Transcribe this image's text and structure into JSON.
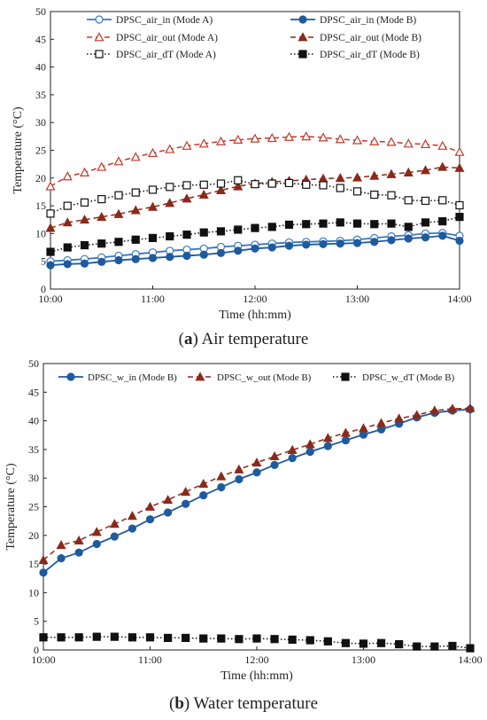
{
  "chart_data": [
    {
      "type": "line",
      "caption_letter": "a",
      "caption_text": " Air temperature",
      "xlabel": "Time (hh:mm)",
      "ylabel": "Temperature (°C)",
      "xlim": [
        0,
        240
      ],
      "ylim": [
        0,
        50
      ],
      "xticks": [
        "10:00",
        "11:00",
        "12:00",
        "13:00",
        "14:00"
      ],
      "yticks": [
        0,
        5,
        10,
        15,
        20,
        25,
        30,
        35,
        40,
        45,
        50
      ],
      "grid": false,
      "legend_position": "top",
      "x": [
        0,
        10,
        20,
        30,
        40,
        50,
        60,
        70,
        80,
        90,
        100,
        110,
        120,
        130,
        140,
        150,
        160,
        170,
        180,
        190,
        200,
        210,
        220,
        230,
        240
      ],
      "series": [
        {
          "name": "DPSC_air_in (Mode A)",
          "color": "#3a78c2",
          "line": "solid",
          "marker": "circle-open",
          "values": [
            5.0,
            5.2,
            5.4,
            5.7,
            6.0,
            6.3,
            6.6,
            6.9,
            7.1,
            7.3,
            7.6,
            7.8,
            8.0,
            8.2,
            8.4,
            8.5,
            8.6,
            8.7,
            8.9,
            9.2,
            9.5,
            9.7,
            10.0,
            10.1,
            9.6
          ]
        },
        {
          "name": "DPSC_air_in (Mode B)",
          "color": "#1f5a9e",
          "line": "solid",
          "marker": "circle-filled",
          "values": [
            4.3,
            4.5,
            4.6,
            4.9,
            5.2,
            5.4,
            5.6,
            5.8,
            6.0,
            6.2,
            6.5,
            6.9,
            7.3,
            7.5,
            7.8,
            8.0,
            8.1,
            8.2,
            8.3,
            8.5,
            8.8,
            9.1,
            9.3,
            9.6,
            8.7
          ]
        },
        {
          "name": "DPSC_air_out (Mode A)",
          "color": "#c0392b",
          "line": "dashed",
          "marker": "triangle-open",
          "values": [
            18.5,
            20.3,
            21.0,
            22.0,
            23.0,
            23.8,
            24.5,
            25.2,
            25.8,
            26.2,
            26.6,
            26.9,
            27.1,
            27.2,
            27.4,
            27.5,
            27.3,
            27.0,
            26.8,
            26.6,
            26.5,
            26.2,
            26.1,
            25.8,
            24.7
          ]
        },
        {
          "name": "DPSC_air_out (Mode B)",
          "color": "#8b2a1a",
          "line": "dashed",
          "marker": "triangle-filled",
          "values": [
            11.0,
            12.0,
            12.5,
            13.0,
            13.5,
            14.2,
            14.8,
            15.5,
            16.3,
            17.0,
            17.8,
            18.5,
            19.0,
            19.3,
            19.5,
            19.7,
            19.9,
            20.0,
            20.1,
            20.4,
            20.7,
            21.0,
            21.4,
            22.0,
            21.8
          ]
        },
        {
          "name": "DPSC_air_dT (Mode A)",
          "color": "#111111",
          "line": "dotted",
          "marker": "square-open",
          "values": [
            13.6,
            15.0,
            15.6,
            16.2,
            16.9,
            17.4,
            17.9,
            18.4,
            18.7,
            18.8,
            19.0,
            19.6,
            18.9,
            19.0,
            19.1,
            18.8,
            18.7,
            18.2,
            17.6,
            17.0,
            16.9,
            16.0,
            15.9,
            16.0,
            15.1
          ]
        },
        {
          "name": "DPSC_air_dT (Mode B)",
          "color": "#111111",
          "line": "dotted",
          "marker": "square-filled",
          "values": [
            6.7,
            7.5,
            7.9,
            8.2,
            8.5,
            8.9,
            9.2,
            9.5,
            9.8,
            10.2,
            10.4,
            10.7,
            11.0,
            11.2,
            11.6,
            11.7,
            11.8,
            12.0,
            11.8,
            11.7,
            11.8,
            11.2,
            12.0,
            12.2,
            13.0
          ]
        }
      ]
    },
    {
      "type": "line",
      "caption_letter": "b",
      "caption_text": " Water temperature",
      "xlabel": "Time (hh:mm)",
      "ylabel": "Temperature (°C)",
      "xlim": [
        0,
        240
      ],
      "ylim": [
        0,
        50
      ],
      "xticks": [
        "10:00",
        "11:00",
        "12:00",
        "13:00",
        "14:00"
      ],
      "yticks": [
        0,
        5,
        10,
        15,
        20,
        25,
        30,
        35,
        40,
        45,
        50
      ],
      "grid": false,
      "legend_position": "top",
      "x": [
        0,
        10,
        20,
        30,
        40,
        50,
        60,
        70,
        80,
        90,
        100,
        110,
        120,
        130,
        140,
        150,
        160,
        170,
        180,
        190,
        200,
        210,
        220,
        230,
        240
      ],
      "series": [
        {
          "name": "DPSC_w_in (Mode B)",
          "color": "#1f5a9e",
          "line": "solid",
          "marker": "circle-filled",
          "values": [
            13.5,
            16.0,
            17.0,
            18.5,
            19.8,
            21.2,
            22.8,
            24.0,
            25.5,
            27.0,
            28.4,
            29.8,
            31.0,
            32.3,
            33.5,
            34.6,
            35.6,
            36.6,
            37.6,
            38.5,
            39.5,
            40.6,
            41.4,
            41.8,
            42.0
          ]
        },
        {
          "name": "DPSC_w_out (Mode B)",
          "color": "#8b2a1a",
          "line": "dashed",
          "marker": "triangle-filled",
          "values": [
            15.7,
            18.3,
            19.1,
            20.6,
            22.0,
            23.4,
            25.0,
            26.2,
            27.6,
            29.0,
            30.3,
            31.5,
            32.7,
            33.8,
            34.9,
            35.9,
            37.0,
            37.9,
            38.7,
            39.6,
            40.4,
            41.0,
            41.8,
            42.1,
            42.2
          ]
        },
        {
          "name": "DPSC_w_dT (Mode B)",
          "color": "#111111",
          "line": "dotted",
          "marker": "square-filled",
          "values": [
            2.2,
            2.2,
            2.2,
            2.3,
            2.3,
            2.2,
            2.2,
            2.1,
            2.1,
            2.0,
            2.0,
            1.9,
            2.0,
            1.9,
            1.8,
            1.7,
            1.5,
            1.2,
            1.1,
            1.2,
            1.0,
            0.6,
            0.6,
            0.7,
            0.3
          ]
        }
      ]
    }
  ]
}
